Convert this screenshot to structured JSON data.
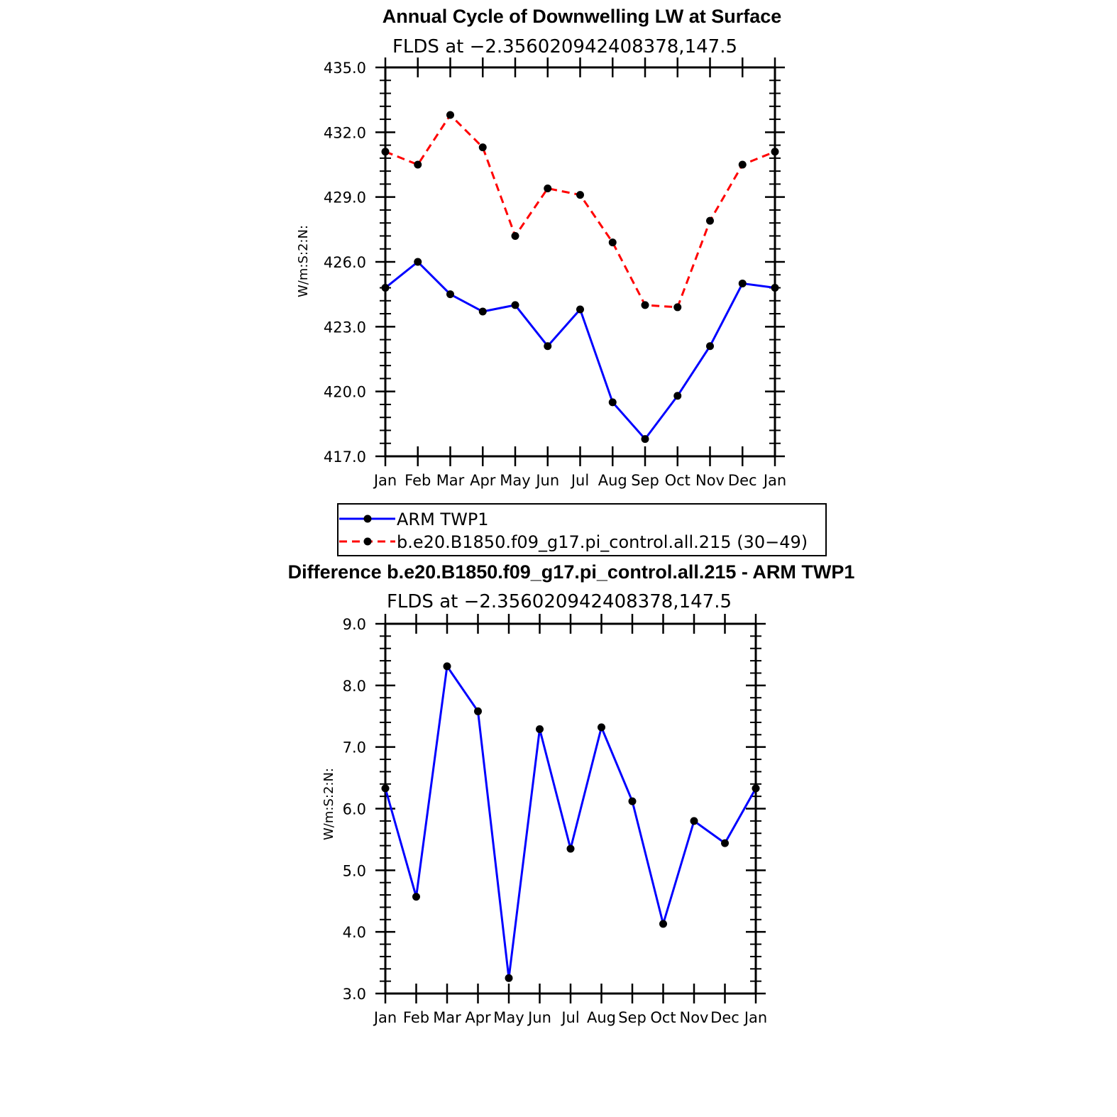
{
  "chart_data": [
    {
      "type": "line",
      "title": "Annual Cycle of Downwelling LW at Surface",
      "subtitle": "FLDS at −2.356020942408378,147.5",
      "ylabel": "W/m:S:2:N:",
      "xlabel": "",
      "categories": [
        "Jan",
        "Feb",
        "Mar",
        "Apr",
        "May",
        "Jun",
        "Jul",
        "Aug",
        "Sep",
        "Oct",
        "Nov",
        "Dec",
        "Jan"
      ],
      "ylim": [
        417.0,
        435.0
      ],
      "yticks": [
        417.0,
        420.0,
        423.0,
        426.0,
        429.0,
        432.0,
        435.0
      ],
      "ytick_labels": [
        "417.0",
        "420.0",
        "423.0",
        "426.0",
        "429.0",
        "432.0",
        "435.0"
      ],
      "grid": false,
      "legend_position": "below",
      "series": [
        {
          "name": "ARM TWP1",
          "color": "#0000ff",
          "dash": "solid",
          "values": [
            424.8,
            426.0,
            424.5,
            423.7,
            424.0,
            422.1,
            423.8,
            419.5,
            417.8,
            419.8,
            422.1,
            425.0,
            424.8
          ]
        },
        {
          "name": "b.e20.B1850.f09_g17.pi_control.all.215 (30−49)",
          "color": "#ff0000",
          "dash": "dashed",
          "values": [
            431.1,
            430.5,
            432.8,
            431.3,
            427.2,
            429.4,
            429.1,
            426.9,
            424.0,
            423.9,
            427.9,
            430.5,
            431.1
          ]
        }
      ]
    },
    {
      "type": "line",
      "title": "Difference b.e20.B1850.f09_g17.pi_control.all.215 - ARM TWP1",
      "subtitle": "FLDS at −2.356020942408378,147.5",
      "ylabel": "W/m:S:2:N:",
      "xlabel": "",
      "categories": [
        "Jan",
        "Feb",
        "Mar",
        "Apr",
        "May",
        "Jun",
        "Jul",
        "Aug",
        "Sep",
        "Oct",
        "Nov",
        "Dec",
        "Jan"
      ],
      "ylim": [
        3.0,
        9.0
      ],
      "yticks": [
        3.0,
        4.0,
        5.0,
        6.0,
        7.0,
        8.0,
        9.0
      ],
      "ytick_labels": [
        "3.0",
        "4.0",
        "5.0",
        "6.0",
        "7.0",
        "8.0",
        "9.0"
      ],
      "grid": false,
      "series": [
        {
          "color": "#0000ff",
          "dash": "solid",
          "values": [
            6.33,
            4.57,
            8.31,
            7.58,
            3.25,
            7.29,
            5.35,
            7.32,
            6.12,
            4.13,
            5.8,
            5.44,
            6.33
          ]
        }
      ]
    }
  ]
}
